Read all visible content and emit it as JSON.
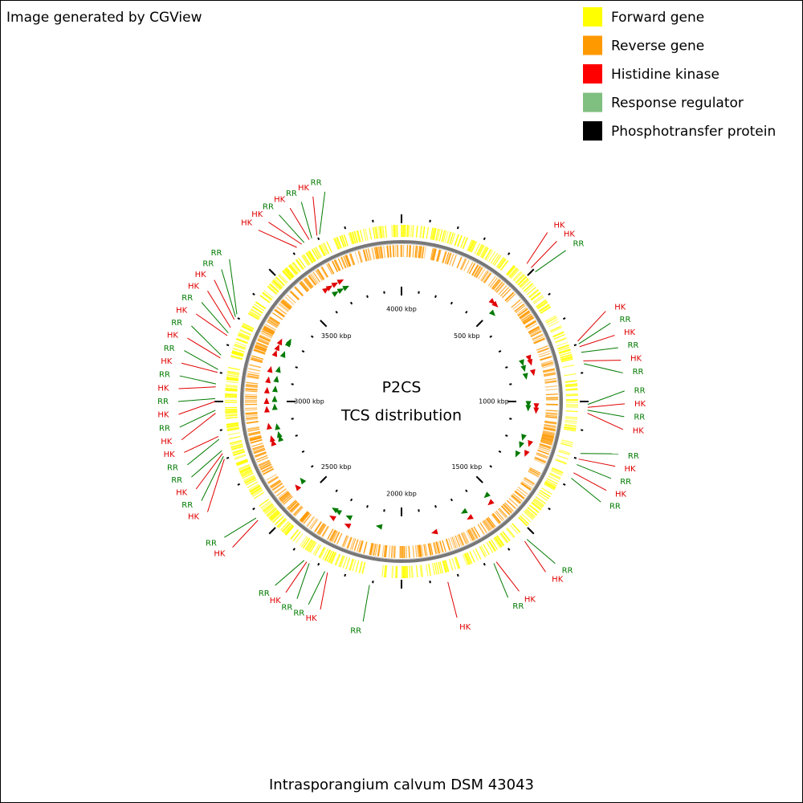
{
  "header": {
    "title": "Image generated by CGView"
  },
  "legend": [
    {
      "label": "Forward gene",
      "color": "#ffff00"
    },
    {
      "label": "Reverse gene",
      "color": "#ff9900"
    },
    {
      "label": "Histidine kinase",
      "color": "#ff0000"
    },
    {
      "label": "Response regulator",
      "color": "#7fbf7f"
    },
    {
      "label": "Phosphotransfer protein",
      "color": "#000000"
    }
  ],
  "center": {
    "title": "P2CS",
    "subtitle": "TCS distribution"
  },
  "footer": {
    "organism": "Intrasporangium calvum DSM 43043"
  },
  "sequence_length": 4000,
  "ticks": [
    {
      "position": 500,
      "label": "500 kbp"
    },
    {
      "position": 1000,
      "label": "1000 kbp"
    },
    {
      "position": 1500,
      "label": "1500 kbp"
    },
    {
      "position": 2000,
      "label": "2000 kbp"
    },
    {
      "position": 2500,
      "label": "2500 kbp"
    },
    {
      "position": 3000,
      "label": "3000 kbp"
    },
    {
      "position": 3500,
      "label": "3500 kbp"
    },
    {
      "position": 4000,
      "label": "4000 kbp"
    }
  ],
  "features": [
    {
      "label": "HK",
      "position": 470,
      "color": "#e00000"
    },
    {
      "label": "HK",
      "position": 490,
      "color": "#e00000"
    },
    {
      "label": "RR",
      "position": 510,
      "color": "#007a00"
    },
    {
      "label": "HK",
      "position": 790,
      "color": "#e00000"
    },
    {
      "label": "RR",
      "position": 800,
      "color": "#007a00"
    },
    {
      "label": "HK",
      "position": 810,
      "color": "#e00000"
    },
    {
      "label": "RR",
      "position": 830,
      "color": "#007a00"
    },
    {
      "label": "HK",
      "position": 860,
      "color": "#e00000"
    },
    {
      "label": "RR",
      "position": 870,
      "color": "#007a00"
    },
    {
      "label": "RR",
      "position": 1010,
      "color": "#007a00"
    },
    {
      "label": "HK",
      "position": 1020,
      "color": "#e00000"
    },
    {
      "label": "RR",
      "position": 1030,
      "color": "#007a00"
    },
    {
      "label": "HK",
      "position": 1040,
      "color": "#e00000"
    },
    {
      "label": "RR",
      "position": 1180,
      "color": "#007a00"
    },
    {
      "label": "HK",
      "position": 1200,
      "color": "#e00000"
    },
    {
      "label": "RR",
      "position": 1220,
      "color": "#007a00"
    },
    {
      "label": "HK",
      "position": 1250,
      "color": "#e00000"
    },
    {
      "label": "RR",
      "position": 1270,
      "color": "#007a00"
    },
    {
      "label": "RR",
      "position": 1530,
      "color": "#007a00"
    },
    {
      "label": "HK",
      "position": 1540,
      "color": "#e00000"
    },
    {
      "label": "HK",
      "position": 1660,
      "color": "#e00000"
    },
    {
      "label": "RR",
      "position": 1670,
      "color": "#007a00"
    },
    {
      "label": "HK",
      "position": 1840,
      "color": "#e00000"
    },
    {
      "label": "RR",
      "position": 2110,
      "color": "#007a00"
    },
    {
      "label": "HK",
      "position": 2260,
      "color": "#e00000"
    },
    {
      "label": "RR",
      "position": 2270,
      "color": "#007a00"
    },
    {
      "label": "RR",
      "position": 2330,
      "color": "#007a00"
    },
    {
      "label": "HK",
      "position": 2340,
      "color": "#e00000"
    },
    {
      "label": "RR",
      "position": 2350,
      "color": "#007a00"
    },
    {
      "label": "HK",
      "position": 2560,
      "color": "#e00000"
    },
    {
      "label": "RR",
      "position": 2570,
      "color": "#007a00"
    },
    {
      "label": "HK",
      "position": 2800,
      "color": "#e00000"
    },
    {
      "label": "RR",
      "position": 2810,
      "color": "#007a00"
    },
    {
      "label": "HK",
      "position": 2820,
      "color": "#e00000"
    },
    {
      "label": "RR",
      "position": 2830,
      "color": "#007a00"
    },
    {
      "label": "RR",
      "position": 2870,
      "color": "#007a00"
    },
    {
      "label": "HK",
      "position": 2880,
      "color": "#e00000"
    },
    {
      "label": "HK",
      "position": 2960,
      "color": "#e00000"
    },
    {
      "label": "RR",
      "position": 2970,
      "color": "#007a00"
    },
    {
      "label": "HK",
      "position": 3000,
      "color": "#e00000"
    },
    {
      "label": "RR",
      "position": 3010,
      "color": "#007a00"
    },
    {
      "label": "HK",
      "position": 3050,
      "color": "#e00000"
    },
    {
      "label": "RR",
      "position": 3060,
      "color": "#007a00"
    },
    {
      "label": "HK",
      "position": 3100,
      "color": "#e00000"
    },
    {
      "label": "RR",
      "position": 3110,
      "color": "#007a00"
    },
    {
      "label": "HK",
      "position": 3150,
      "color": "#e00000"
    },
    {
      "label": "RR",
      "position": 3160,
      "color": "#007a00"
    },
    {
      "label": "HK",
      "position": 3230,
      "color": "#e00000"
    },
    {
      "label": "RR",
      "position": 3240,
      "color": "#007a00"
    },
    {
      "label": "HK",
      "position": 3260,
      "color": "#e00000"
    },
    {
      "label": "HK",
      "position": 3290,
      "color": "#e00000"
    },
    {
      "label": "RR",
      "position": 3300,
      "color": "#007a00"
    },
    {
      "label": "RR",
      "position": 3310,
      "color": "#007a00"
    },
    {
      "label": "HK",
      "position": 3620,
      "color": "#e00000"
    },
    {
      "label": "HK",
      "position": 3640,
      "color": "#e00000"
    },
    {
      "label": "RR",
      "position": 3650,
      "color": "#007a00"
    },
    {
      "label": "HK",
      "position": 3670,
      "color": "#e00000"
    },
    {
      "label": "RR",
      "position": 3680,
      "color": "#007a00"
    },
    {
      "label": "HK",
      "position": 3700,
      "color": "#e00000"
    },
    {
      "label": "RR",
      "position": 3710,
      "color": "#007a00"
    }
  ]
}
